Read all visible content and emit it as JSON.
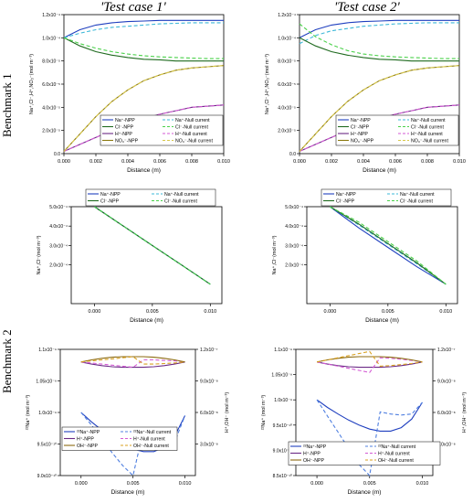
{
  "titles": {
    "left": "'Test case 1'",
    "right": "'Test case 2'"
  },
  "row_labels": {
    "benchmark1": "Benchmark 1",
    "benchmark2": "Benchmark 2"
  },
  "colors": {
    "na": "#1f3fbf",
    "na_null": "#3db8d8",
    "cl": "#1f6a1f",
    "cl_null": "#4ad14a",
    "h": "#6b2a86",
    "h_null": "#d45ad4",
    "no3": "#8c7a10",
    "no3_null": "#d8c84a",
    "na22": "#1f3fbf",
    "na22_null": "#4f7fe0",
    "oh": "#8c6a10",
    "oh_null": "#d8a020",
    "h_b2": "#6b1f5a",
    "h_b2_null": "#8a2a70"
  },
  "chart_data": [
    {
      "id": "b1_case1_top",
      "type": "line",
      "xlabel": "Distance (m)",
      "ylabel": "Na⁺,Cl⁻,H⁺,NO₃⁻(mol m⁻³)",
      "xlim": [
        0,
        0.01
      ],
      "ylim": [
        0,
        0.00012
      ],
      "xticks": [
        "0.000",
        "0.002",
        "0.004",
        "0.006",
        "0.008",
        "0.010"
      ],
      "yticks": [
        "0.0",
        "2.0x10⁻⁵",
        "4.0x10⁻⁵",
        "6.0x10⁻⁵",
        "8.0x10⁻⁵",
        "1.0x10⁻⁴",
        "1.2x10⁻⁴"
      ],
      "legend": [
        "Na⁺-NPP",
        "Na⁺-Null current",
        "Cl⁻-NPP",
        "Cl⁻-Null current",
        "H⁺-NPP",
        "H⁺-Null current",
        "NO₃⁻-NPP",
        "NO₃⁻-Null current"
      ],
      "x": [
        0,
        0.001,
        0.002,
        0.003,
        0.004,
        0.005,
        0.006,
        0.007,
        0.008,
        0.009,
        0.01
      ],
      "series": [
        {
          "name": "Na⁺-NPP",
          "values": [
            0.0001,
            0.000107,
            0.000111,
            0.000113,
            0.000114,
            0.0001145,
            0.000115,
            0.000115,
            0.000115,
            0.000115,
            0.000115
          ]
        },
        {
          "name": "Na⁺-Null current",
          "values": [
            0.0001,
            0.000104,
            0.000107,
            0.000109,
            0.00011,
            0.000111,
            0.000112,
            0.0001125,
            0.000113,
            0.000113,
            0.000113
          ]
        },
        {
          "name": "Cl⁻-NPP",
          "values": [
            0.0001,
            9.3e-05,
            8.8e-05,
            8.5e-05,
            8.3e-05,
            8.15e-05,
            8.1e-05,
            8e-05,
            8e-05,
            8e-05,
            8e-05
          ]
        },
        {
          "name": "Cl⁻-Null current",
          "values": [
            0.0001,
            9.5e-05,
            9.1e-05,
            8.8e-05,
            8.6e-05,
            8.45e-05,
            8.35e-05,
            8.3e-05,
            8.25e-05,
            8.2e-05,
            8.2e-05
          ]
        },
        {
          "name": "H⁺-NPP",
          "values": [
            2e-06,
            8e-06,
            1.4e-05,
            2e-05,
            2.5e-05,
            3e-05,
            3.4e-05,
            3.7e-05,
            4e-05,
            4.1e-05,
            4.2e-05
          ]
        },
        {
          "name": "H⁺-Null current",
          "values": [
            2e-06,
            8e-06,
            1.4e-05,
            2e-05,
            2.5e-05,
            3e-05,
            3.4e-05,
            3.7e-05,
            4e-05,
            4.1e-05,
            4.2e-05
          ]
        },
        {
          "name": "NO₃⁻-NPP",
          "values": [
            2e-06,
            1.7e-05,
            3.2e-05,
            4.5e-05,
            5.5e-05,
            6.3e-05,
            6.8e-05,
            7.2e-05,
            7.4e-05,
            7.5e-05,
            7.6e-05
          ]
        },
        {
          "name": "NO₃⁻-Null current",
          "values": [
            2e-06,
            1.7e-05,
            3.2e-05,
            4.5e-05,
            5.5e-05,
            6.3e-05,
            6.8e-05,
            7.2e-05,
            7.4e-05,
            7.5e-05,
            7.6e-05
          ]
        }
      ]
    },
    {
      "id": "b1_case2_top",
      "type": "line",
      "xlabel": "Distance (m)",
      "ylabel": "Na⁺,Cl⁻,H⁺,NO₃⁻(mol m⁻³)",
      "xlim": [
        0,
        0.01
      ],
      "ylim": [
        0,
        0.00012
      ],
      "xticks": [
        "0.000",
        "0.002",
        "0.004",
        "0.006",
        "0.008",
        "0.010"
      ],
      "yticks": [
        "0.0",
        "2.0x10⁻⁵",
        "4.0x10⁻⁵",
        "6.0x10⁻⁵",
        "8.0x10⁻⁵",
        "1.0x10⁻⁴",
        "1.2x10⁻⁴"
      ],
      "legend": [
        "Na⁺-NPP",
        "Na⁺-Null current",
        "Cl⁻-NPP",
        "Cl⁻-Null current",
        "H⁺-NPP",
        "H⁺-Null current",
        "NO₃⁻-NPP",
        "NO₃⁻-Null current"
      ],
      "x": [
        0,
        0.001,
        0.002,
        0.003,
        0.004,
        0.005,
        0.006,
        0.007,
        0.008,
        0.009,
        0.01
      ],
      "series": [
        {
          "name": "Na⁺-NPP",
          "values": [
            0.0001,
            0.000107,
            0.000111,
            0.000113,
            0.000114,
            0.0001145,
            0.000115,
            0.000115,
            0.000115,
            0.000115,
            0.000115
          ]
        },
        {
          "name": "Na⁺-Null current",
          "values": [
            9.5e-05,
            0.000102,
            0.000106,
            0.000108,
            0.00011,
            0.000111,
            0.000112,
            0.0001125,
            0.000113,
            0.000113,
            0.000113
          ]
        },
        {
          "name": "Cl⁻-NPP",
          "values": [
            0.0001,
            9.3e-05,
            8.8e-05,
            8.5e-05,
            8.3e-05,
            8.15e-05,
            8.1e-05,
            8e-05,
            8e-05,
            8e-05,
            8e-05
          ]
        },
        {
          "name": "Cl⁻-Null current",
          "values": [
            0.000112,
            0.000101,
            9.4e-05,
            8.9e-05,
            8.6e-05,
            8.45e-05,
            8.35e-05,
            8.3e-05,
            8.25e-05,
            8.2e-05,
            8.2e-05
          ]
        },
        {
          "name": "H⁺-NPP",
          "values": [
            2e-06,
            8e-06,
            1.4e-05,
            2e-05,
            2.5e-05,
            3e-05,
            3.4e-05,
            3.7e-05,
            4e-05,
            4.1e-05,
            4.2e-05
          ]
        },
        {
          "name": "H⁺-Null current",
          "values": [
            2e-06,
            8e-06,
            1.4e-05,
            2e-05,
            2.5e-05,
            3e-05,
            3.4e-05,
            3.7e-05,
            4e-05,
            4.1e-05,
            4.2e-05
          ]
        },
        {
          "name": "NO₃⁻-NPP",
          "values": [
            2e-06,
            1.7e-05,
            3.2e-05,
            4.5e-05,
            5.5e-05,
            6.3e-05,
            6.8e-05,
            7.2e-05,
            7.4e-05,
            7.5e-05,
            7.6e-05
          ]
        },
        {
          "name": "NO₃⁻-Null current",
          "values": [
            2e-06,
            1.7e-05,
            3.2e-05,
            4.5e-05,
            5.5e-05,
            6.3e-05,
            6.8e-05,
            7.2e-05,
            7.4e-05,
            7.5e-05,
            7.6e-05
          ]
        }
      ]
    },
    {
      "id": "b1_case1_mid",
      "type": "line",
      "xlabel": "Distance (m)",
      "ylabel": "Na⁺,Cl⁻(mol m⁻³)",
      "xlim": [
        -0.002,
        0.011
      ],
      "ylim": [
        0,
        0.0005
      ],
      "xticks": [
        "0.000",
        "0.005",
        "0.010"
      ],
      "xtick_values": [
        0,
        0.005,
        0.01
      ],
      "yticks": [
        "2.0x10⁻⁴",
        "3.0x10⁻⁴",
        "4.0x10⁻⁴",
        "5.0x10⁻⁴"
      ],
      "ytick_values": [
        0.0002,
        0.0003,
        0.0004,
        0.0005
      ],
      "legend": [
        "Na⁺-NPP",
        "Na⁺-Null current",
        "Cl⁻-NPP",
        "Cl⁻-Null current"
      ],
      "x": [
        0,
        0.0025,
        0.005,
        0.0075,
        0.01
      ],
      "series": [
        {
          "name": "Na⁺-NPP",
          "values": [
            0.0005,
            0.0004,
            0.0003,
            0.0002,
            0.0001
          ]
        },
        {
          "name": "Na⁺-Null current",
          "values": [
            0.0005,
            0.0004,
            0.0003,
            0.0002,
            0.0001
          ]
        },
        {
          "name": "Cl⁻-NPP",
          "values": [
            0.0005,
            0.0004,
            0.0003,
            0.0002,
            0.0001
          ]
        },
        {
          "name": "Cl⁻-Null current",
          "values": [
            0.0005,
            0.0004,
            0.0003,
            0.0002,
            0.0001
          ]
        }
      ]
    },
    {
      "id": "b1_case2_mid",
      "type": "line",
      "xlabel": "Distance (m)",
      "ylabel": "Na⁺,Cl⁻(mol m⁻³)",
      "xlim": [
        -0.002,
        0.011
      ],
      "ylim": [
        0,
        0.0005
      ],
      "xticks": [
        "0.000",
        "0.005",
        "0.010"
      ],
      "xtick_values": [
        0,
        0.005,
        0.01
      ],
      "yticks": [
        "2.0x10⁻⁴",
        "3.0x10⁻⁴",
        "4.0x10⁻⁴",
        "5.0x10⁻⁴"
      ],
      "ytick_values": [
        0.0002,
        0.0003,
        0.0004,
        0.0005
      ],
      "legend": [
        "Na⁺-NPP",
        "Na⁺-Null current",
        "Cl⁻-NPP",
        "Cl⁻-Null current"
      ],
      "x": [
        0,
        0.0025,
        0.005,
        0.0075,
        0.01
      ],
      "series": [
        {
          "name": "Na⁺-NPP",
          "values": [
            0.0005,
            0.00039,
            0.00029,
            0.00019,
            0.0001
          ]
        },
        {
          "name": "Na⁺-Null current",
          "values": [
            0.0005,
            0.000405,
            0.000305,
            0.000205,
            0.0001
          ]
        },
        {
          "name": "Cl⁻-NPP",
          "values": [
            0.0005,
            0.00041,
            0.00031,
            0.00021,
            0.0001
          ]
        },
        {
          "name": "Cl⁻-Null current",
          "values": [
            0.0005,
            0.00042,
            0.00032,
            0.00022,
            0.0001
          ]
        }
      ]
    },
    {
      "id": "b2_case1",
      "type": "line",
      "xlabel": "Distance (m)",
      "ylabel": "²²Na⁺ (mol m⁻³)",
      "ylabel2": "H⁺,OH⁻ (mol m⁻³)",
      "xlim": [
        -0.002,
        0.011
      ],
      "ylim": [
        9e-10,
        1.1e-09
      ],
      "ylim2": [
        0,
        1.2e-07
      ],
      "xticks": [
        "0.000",
        "0.005",
        "0.010"
      ],
      "xtick_values": [
        0,
        0.005,
        0.01
      ],
      "yticks": [
        "9.0x10⁻¹⁰",
        "9.5x10⁻¹⁰",
        "1.0x10⁻⁹",
        "1.05x10⁻⁹",
        "1.1x10⁻⁹"
      ],
      "ytick_values": [
        9e-10,
        9.5e-10,
        1e-09,
        1.05e-09,
        1.1e-09
      ],
      "yticks2": [
        "3.0x10⁻⁸",
        "6.0x10⁻⁸",
        "9.0x10⁻⁸",
        "1.2x10⁻⁷"
      ],
      "ytick_values2": [
        3e-08,
        6e-08,
        9e-08,
        1.2e-07
      ],
      "legend": [
        "²²Na⁺-NPP",
        "²²Na⁺-Null current",
        "H⁺-NPP",
        "H⁺-Null current",
        "OH⁻-NPP",
        "OH⁻-Null current"
      ],
      "x": [
        0,
        0.001,
        0.002,
        0.003,
        0.004,
        0.005,
        0.006,
        0.007,
        0.008,
        0.009,
        0.01
      ],
      "series": [
        {
          "name": "²²Na⁺-NPP",
          "axis": "left",
          "values": [
            1e-09,
            9.85e-10,
            9.72e-10,
            9.6e-10,
            9.5e-10,
            9.42e-10,
            9.38e-10,
            9.38e-10,
            9.45e-10,
            9.62e-10,
            9.95e-10
          ]
        },
        {
          "name": "²²Na⁺-Null current",
          "axis": "left",
          "values": [
            1e-09,
            9.8e-10,
            9.58e-10,
            9.36e-10,
            9.16e-10,
            9e-10,
            9.72e-10,
            9.62e-10,
            9.54e-10,
            9.53e-10,
            9.95e-10
          ]
        },
        {
          "name": "H⁺-NPP",
          "axis": "right",
          "values": [
            1.08e-07,
            1.06e-07,
            1.045e-07,
            1.035e-07,
            1.03e-07,
            1.03e-07,
            1.03e-07,
            1.035e-07,
            1.045e-07,
            1.06e-07,
            1.08e-07
          ]
        },
        {
          "name": "H⁺-Null current",
          "axis": "right",
          "values": [
            1.08e-07,
            1.07e-07,
            1.06e-07,
            1.05e-07,
            1.04e-07,
            1.03e-07,
            1.1e-07,
            1.1e-07,
            1.095e-07,
            1.09e-07,
            1.08e-07
          ]
        },
        {
          "name": "OH⁻-NPP",
          "axis": "right",
          "values": [
            1.08e-07,
            1.1e-07,
            1.115e-07,
            1.125e-07,
            1.13e-07,
            1.13e-07,
            1.13e-07,
            1.125e-07,
            1.115e-07,
            1.1e-07,
            1.08e-07
          ]
        },
        {
          "name": "OH⁻-Null current",
          "axis": "right",
          "values": [
            1.08e-07,
            1.09e-07,
            1.1e-07,
            1.11e-07,
            1.12e-07,
            1.13e-07,
            1.06e-07,
            1.06e-07,
            1.065e-07,
            1.07e-07,
            1.08e-07
          ]
        }
      ]
    },
    {
      "id": "b2_case2",
      "type": "line",
      "xlabel": "Distance (m)",
      "ylabel": "²²Na⁺ (mol m⁻³)",
      "ylabel2": "H⁺,OH⁻ (mol m⁻³)",
      "xlim": [
        -0.002,
        0.011
      ],
      "ylim": [
        8.5e-10,
        1.1e-09
      ],
      "ylim2": [
        0,
        1.2e-07
      ],
      "xticks": [
        "0.000",
        "0.005",
        "0.010"
      ],
      "xtick_values": [
        0,
        0.005,
        0.01
      ],
      "yticks": [
        "8.5x10⁻¹⁰",
        "9.0x10⁻¹⁰",
        "9.5x10⁻¹⁰",
        "1.0x10⁻⁹",
        "1.05x10⁻⁹",
        "1.1x10⁻⁹"
      ],
      "ytick_values": [
        8.5e-10,
        9e-10,
        9.5e-10,
        1e-09,
        1.05e-09,
        1.1e-09
      ],
      "yticks2": [
        "3.0x10⁻⁸",
        "6.0x10⁻⁸",
        "9.0x10⁻⁸",
        "1.2x10⁻⁷"
      ],
      "ytick_values2": [
        3e-08,
        6e-08,
        9e-08,
        1.2e-07
      ],
      "legend": [
        "²²Na⁺-NPP",
        "²²Na⁺-Null current",
        "H⁺-NPP",
        "H⁺-Null current",
        "OH⁻-NPP",
        "OH⁻-Null current"
      ],
      "x": [
        0,
        0.001,
        0.002,
        0.003,
        0.004,
        0.005,
        0.006,
        0.007,
        0.008,
        0.009,
        0.01
      ],
      "series": [
        {
          "name": "²²Na⁺-NPP",
          "axis": "left",
          "values": [
            1e-09,
            9.85e-10,
            9.72e-10,
            9.6e-10,
            9.5e-10,
            9.42e-10,
            9.38e-10,
            9.38e-10,
            9.45e-10,
            9.62e-10,
            9.95e-10
          ]
        },
        {
          "name": "²²Na⁺-Null current",
          "axis": "left",
          "values": [
            1e-09,
            9.68e-10,
            9.36e-10,
            9.04e-10,
            8.72e-10,
            8.5e-10,
            9.76e-10,
            9.72e-10,
            9.7e-10,
            9.72e-10,
            9.95e-10
          ]
        },
        {
          "name": "H⁺-NPP",
          "axis": "right",
          "values": [
            1.08e-07,
            1.06e-07,
            1.045e-07,
            1.035e-07,
            1.03e-07,
            1.03e-07,
            1.03e-07,
            1.035e-07,
            1.045e-07,
            1.06e-07,
            1.08e-07
          ]
        },
        {
          "name": "H⁺-Null current",
          "axis": "right",
          "values": [
            1.08e-07,
            1.06e-07,
            1.04e-07,
            1.02e-07,
            1e-07,
            9.8e-08,
            1.12e-07,
            1.115e-07,
            1.105e-07,
            1.095e-07,
            1.08e-07
          ]
        },
        {
          "name": "OH⁻-NPP",
          "axis": "right",
          "values": [
            1.08e-07,
            1.1e-07,
            1.115e-07,
            1.125e-07,
            1.13e-07,
            1.13e-07,
            1.13e-07,
            1.125e-07,
            1.115e-07,
            1.1e-07,
            1.08e-07
          ]
        },
        {
          "name": "OH⁻-Null current",
          "axis": "right",
          "values": [
            1.08e-07,
            1.1e-07,
            1.12e-07,
            1.14e-07,
            1.16e-07,
            1.18e-07,
            1.04e-07,
            1.045e-07,
            1.055e-07,
            1.065e-07,
            1.08e-07
          ]
        }
      ]
    }
  ]
}
